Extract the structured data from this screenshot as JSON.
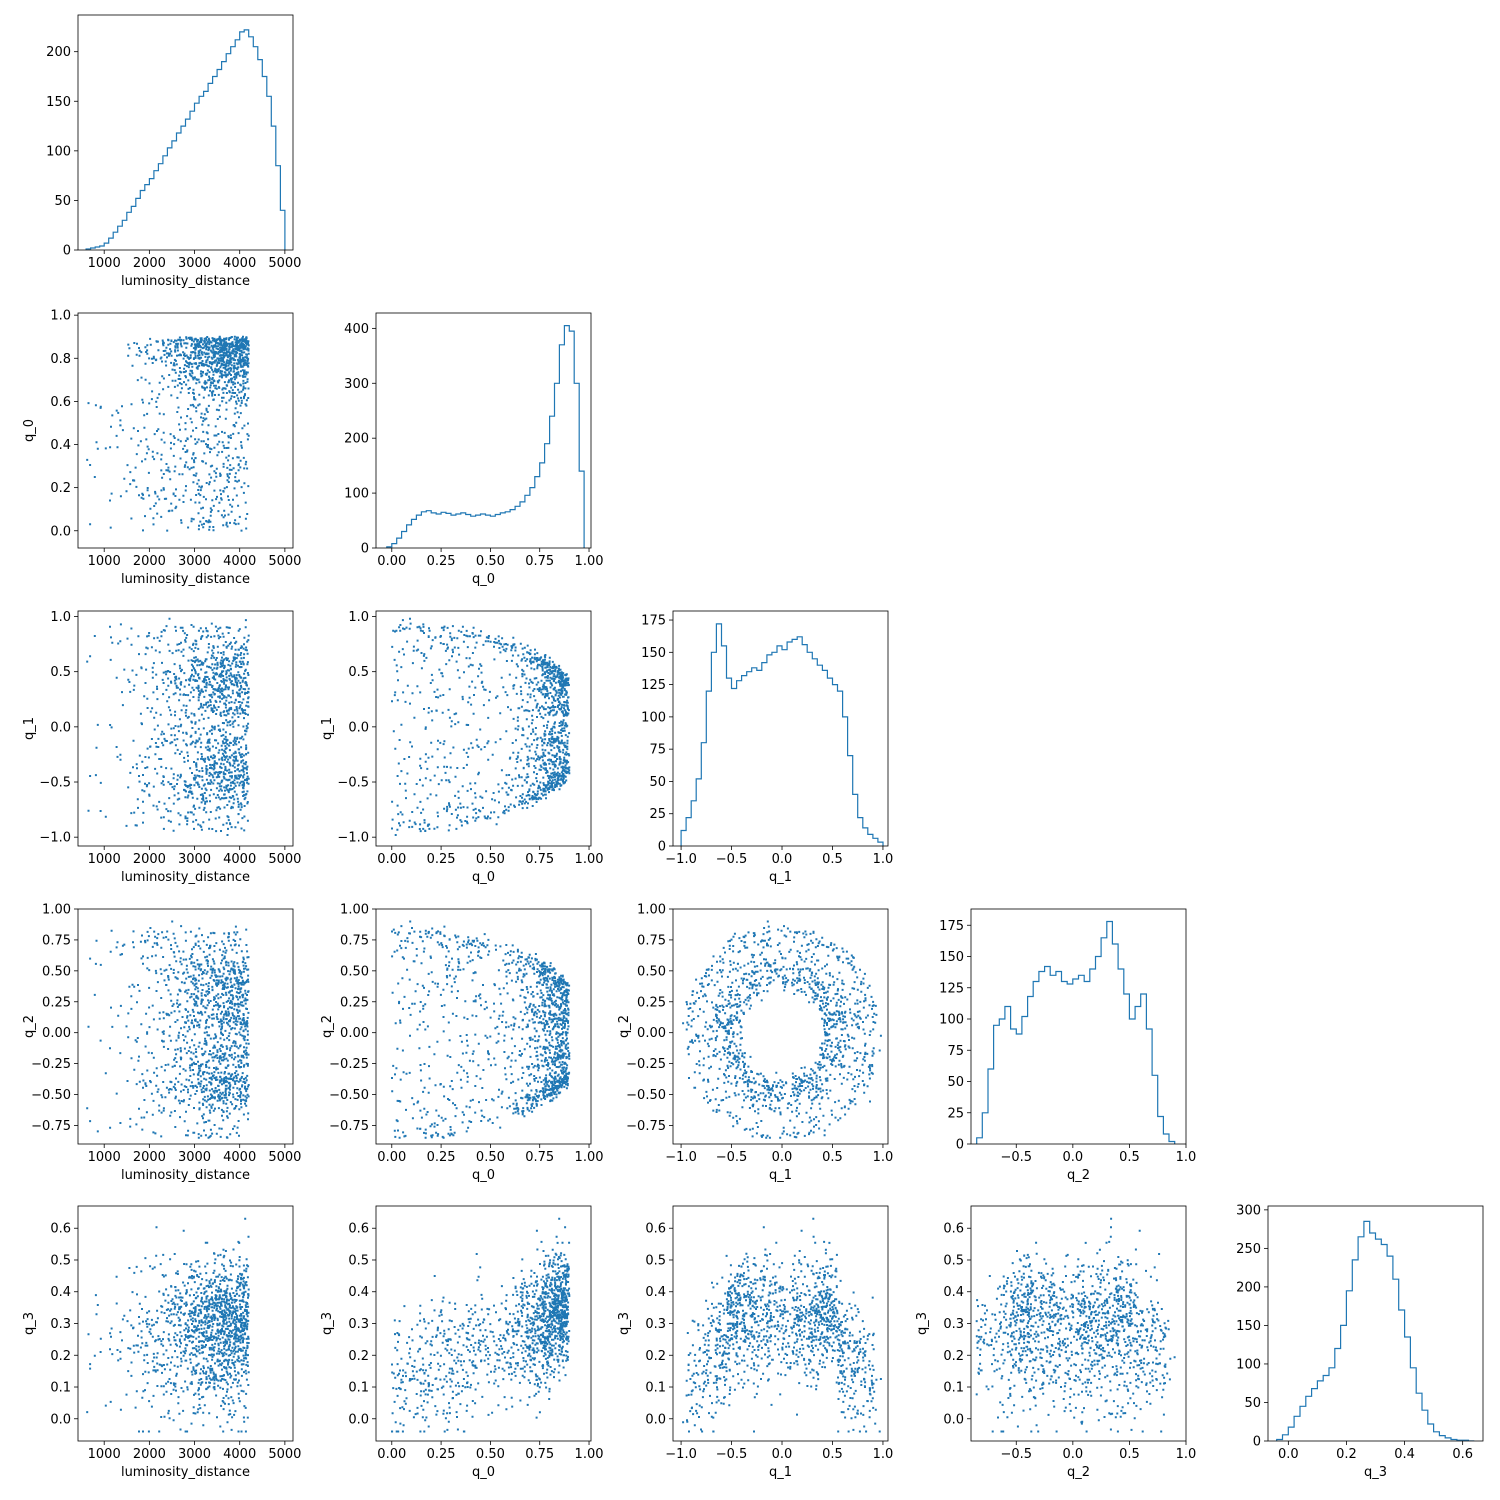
{
  "chart_data": {
    "type": "corner",
    "variables": [
      "luminosity_distance",
      "q_0",
      "q_1",
      "q_2",
      "q_3"
    ],
    "color": "#1f77b4",
    "axis_limits": {
      "luminosity_distance": [
        420,
        5180
      ],
      "q_0": [
        -0.08,
        1.01
      ],
      "q_1": [
        -1.08,
        1.05
      ],
      "q_2": [
        -0.9,
        1.0
      ],
      "q_3": [
        -0.07,
        0.67
      ]
    },
    "ticks": {
      "luminosity_distance": [
        1000,
        2000,
        3000,
        4000,
        5000
      ],
      "q_0": [
        0.0,
        0.25,
        0.5,
        0.75,
        1.0
      ],
      "q_1": [
        -1.0,
        -0.5,
        0.0,
        0.5,
        1.0
      ],
      "q_2": [
        -0.5,
        0.0,
        0.5,
        1.0
      ],
      "q_3": [
        0.0,
        0.2,
        0.4,
        0.6
      ]
    },
    "scatter_ticks": {
      "q_0": [
        0.0,
        0.2,
        0.4,
        0.6,
        0.8,
        1.0
      ],
      "q_1": [
        -1.0,
        -0.5,
        0.0,
        0.5,
        1.0
      ],
      "q_2": [
        -0.75,
        -0.5,
        -0.25,
        0.0,
        0.25,
        0.5,
        0.75,
        1.0
      ],
      "q_3": [
        0.0,
        0.1,
        0.2,
        0.3,
        0.4,
        0.5,
        0.6
      ]
    },
    "tick_labels": {
      "luminosity_distance": [
        "1000",
        "2000",
        "3000",
        "4000",
        "5000"
      ],
      "q_0": [
        "0.00",
        "0.25",
        "0.50",
        "0.75",
        "1.00"
      ],
      "q_1": [
        "−1.0",
        "−0.5",
        "0.0",
        "0.5",
        "1.0"
      ],
      "q_2": [
        "−0.5",
        "0.0",
        "0.5",
        "1.0"
      ],
      "q_3": [
        "0.0",
        "0.2",
        "0.4",
        "0.6"
      ]
    },
    "scatter_tick_labels": {
      "q_0": [
        "0.0",
        "0.2",
        "0.4",
        "0.6",
        "0.8",
        "1.0"
      ],
      "q_1": [
        "−1.0",
        "−0.5",
        "0.0",
        "0.5",
        "1.0"
      ],
      "q_2": [
        "−0.75",
        "−0.50",
        "−0.25",
        "0.00",
        "0.25",
        "0.50",
        "0.75",
        "1.00"
      ],
      "q_3": [
        "0.0",
        "0.1",
        "0.2",
        "0.3",
        "0.4",
        "0.5",
        "0.6"
      ]
    },
    "histograms": [
      {
        "variable": "luminosity_distance",
        "ylim": [
          0,
          237
        ],
        "yticks": [
          0,
          50,
          100,
          150,
          200
        ],
        "ytick_labels": [
          "0",
          "50",
          "100",
          "150",
          "200"
        ],
        "bin_edges": [
          600,
          700,
          800,
          900,
          1000,
          1100,
          1200,
          1300,
          1400,
          1500,
          1600,
          1700,
          1800,
          1900,
          2000,
          2100,
          2200,
          2300,
          2400,
          2500,
          2600,
          2700,
          2800,
          2900,
          3000,
          3100,
          3200,
          3300,
          3400,
          3500,
          3600,
          3700,
          3800,
          3900,
          4000,
          4100,
          4200,
          4300,
          4400,
          4500,
          4600,
          4700,
          4800,
          4900,
          5000
        ],
        "counts": [
          1,
          2,
          3,
          4,
          7,
          12,
          18,
          24,
          30,
          38,
          44,
          52,
          60,
          66,
          72,
          80,
          87,
          95,
          103,
          110,
          118,
          125,
          132,
          140,
          148,
          155,
          160,
          168,
          175,
          182,
          190,
          198,
          205,
          212,
          220,
          222,
          215,
          205,
          192,
          175,
          155,
          125,
          85,
          40
        ]
      },
      {
        "variable": "q_0",
        "ylim": [
          0,
          428
        ],
        "yticks": [
          0,
          100,
          200,
          300,
          400
        ],
        "ytick_labels": [
          "0",
          "100",
          "200",
          "300",
          "400"
        ],
        "bin_edges": [
          -0.025,
          0.0,
          0.025,
          0.05,
          0.075,
          0.1,
          0.125,
          0.15,
          0.175,
          0.2,
          0.225,
          0.25,
          0.275,
          0.3,
          0.325,
          0.35,
          0.375,
          0.4,
          0.425,
          0.45,
          0.475,
          0.5,
          0.525,
          0.55,
          0.575,
          0.6,
          0.625,
          0.65,
          0.675,
          0.7,
          0.725,
          0.75,
          0.775,
          0.8,
          0.825,
          0.85,
          0.875,
          0.9,
          0.925,
          0.95,
          0.975
        ],
        "counts": [
          2,
          8,
          18,
          30,
          42,
          52,
          60,
          66,
          68,
          64,
          62,
          65,
          63,
          60,
          62,
          64,
          61,
          58,
          60,
          62,
          60,
          58,
          61,
          64,
          66,
          70,
          76,
          84,
          96,
          110,
          130,
          155,
          190,
          240,
          300,
          370,
          405,
          395,
          300,
          140
        ]
      },
      {
        "variable": "q_1",
        "ylim": [
          0,
          182
        ],
        "yticks": [
          0,
          25,
          50,
          75,
          100,
          125,
          150,
          175
        ],
        "ytick_labels": [
          "0",
          "25",
          "50",
          "75",
          "100",
          "125",
          "150",
          "175"
        ],
        "bin_edges": [
          -1.0,
          -0.95,
          -0.9,
          -0.85,
          -0.8,
          -0.75,
          -0.7,
          -0.65,
          -0.6,
          -0.55,
          -0.5,
          -0.45,
          -0.4,
          -0.35,
          -0.3,
          -0.25,
          -0.2,
          -0.15,
          -0.1,
          -0.05,
          0.0,
          0.05,
          0.1,
          0.15,
          0.2,
          0.25,
          0.3,
          0.35,
          0.4,
          0.45,
          0.5,
          0.55,
          0.6,
          0.65,
          0.7,
          0.75,
          0.8,
          0.85,
          0.9,
          0.95,
          1.0
        ],
        "counts": [
          12,
          22,
          35,
          52,
          80,
          120,
          150,
          172,
          155,
          130,
          122,
          128,
          132,
          135,
          138,
          136,
          142,
          148,
          150,
          155,
          152,
          158,
          160,
          162,
          156,
          150,
          145,
          140,
          136,
          130,
          125,
          120,
          100,
          70,
          40,
          22,
          14,
          9,
          6,
          3
        ]
      },
      {
        "variable": "q_2",
        "ylim": [
          0,
          188
        ],
        "yticks": [
          0,
          25,
          50,
          75,
          100,
          125,
          150,
          175
        ],
        "ytick_labels": [
          "0",
          "25",
          "50",
          "75",
          "100",
          "125",
          "150",
          "175"
        ],
        "bin_edges": [
          -0.85,
          -0.8,
          -0.75,
          -0.7,
          -0.65,
          -0.6,
          -0.55,
          -0.5,
          -0.45,
          -0.4,
          -0.35,
          -0.3,
          -0.25,
          -0.2,
          -0.15,
          -0.1,
          -0.05,
          0.0,
          0.05,
          0.1,
          0.15,
          0.2,
          0.25,
          0.3,
          0.35,
          0.4,
          0.45,
          0.5,
          0.55,
          0.6,
          0.65,
          0.7,
          0.75,
          0.8,
          0.85,
          0.9
        ],
        "counts": [
          5,
          25,
          60,
          95,
          100,
          110,
          92,
          88,
          102,
          118,
          130,
          138,
          142,
          135,
          138,
          130,
          128,
          132,
          135,
          130,
          140,
          150,
          165,
          178,
          160,
          140,
          120,
          100,
          110,
          120,
          92,
          55,
          22,
          8,
          2
        ]
      },
      {
        "variable": "q_3",
        "ylim": [
          0,
          305
        ],
        "yticks": [
          0,
          50,
          100,
          150,
          200,
          250,
          300
        ],
        "ytick_labels": [
          "0",
          "50",
          "100",
          "150",
          "200",
          "250",
          "300"
        ],
        "bin_edges": [
          -0.04,
          -0.02,
          0.0,
          0.02,
          0.04,
          0.06,
          0.08,
          0.1,
          0.12,
          0.14,
          0.16,
          0.18,
          0.2,
          0.22,
          0.24,
          0.26,
          0.28,
          0.3,
          0.32,
          0.34,
          0.36,
          0.38,
          0.4,
          0.42,
          0.44,
          0.46,
          0.48,
          0.5,
          0.52,
          0.54,
          0.56,
          0.58,
          0.6,
          0.62,
          0.64
        ],
        "counts": [
          2,
          8,
          18,
          32,
          45,
          58,
          68,
          78,
          85,
          95,
          120,
          150,
          195,
          235,
          265,
          285,
          270,
          262,
          255,
          240,
          210,
          170,
          135,
          95,
          62,
          40,
          22,
          12,
          7,
          4,
          2,
          1,
          1,
          0
        ]
      }
    ]
  }
}
